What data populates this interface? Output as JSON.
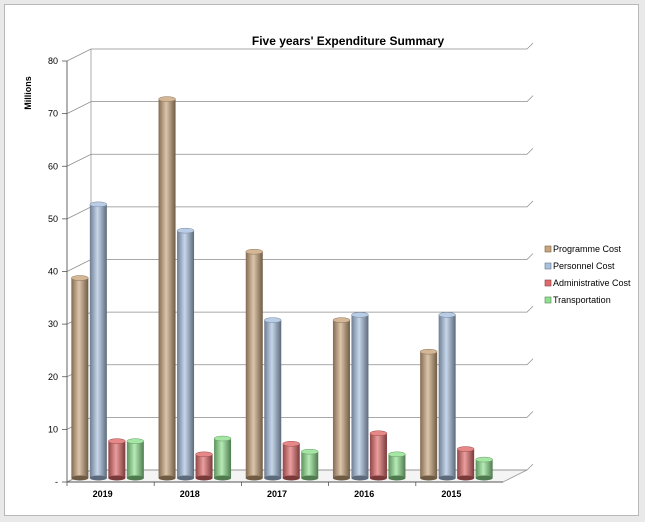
{
  "chart_data": {
    "type": "bar",
    "title": "Five years' Expenditure Summary",
    "ylabel": "Millions",
    "xlabel": "",
    "ylim": [
      0,
      80
    ],
    "yticks": [
      0,
      10,
      20,
      30,
      40,
      50,
      60,
      70,
      80
    ],
    "ytick_labels": [
      "-",
      "10",
      "20",
      "30",
      "40",
      "50",
      "60",
      "70",
      "80"
    ],
    "categories": [
      "2019",
      "2018",
      "2017",
      "2016",
      "2015"
    ],
    "series": [
      {
        "name": "Programme Cost",
        "color": "#c9a57c",
        "values": [
          38,
          72,
          43,
          30,
          24
        ]
      },
      {
        "name": "Personnel Cost",
        "color": "#a9c1e0",
        "values": [
          52,
          47,
          30,
          31,
          31
        ]
      },
      {
        "name": "Administrative Cost",
        "color": "#e06a6a",
        "values": [
          7,
          4.5,
          6.5,
          8.5,
          5.5
        ]
      },
      {
        "name": "Transportation",
        "color": "#8fe08f",
        "values": [
          7,
          7.5,
          5,
          4.5,
          3.5
        ]
      }
    ],
    "legend_position": "right",
    "grid": true,
    "style": "3d-cylinder"
  }
}
